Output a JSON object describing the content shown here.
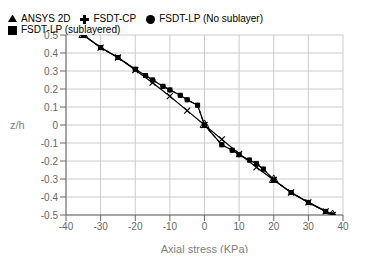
{
  "chart_data": {
    "type": "line",
    "title": "",
    "xlabel": "Axial stress (KPa)",
    "ylabel": "z/h",
    "xlim": [
      -40,
      40
    ],
    "ylim": [
      -0.5,
      0.5
    ],
    "xticks": [
      -40,
      -30,
      -20,
      -10,
      0,
      10,
      20,
      30,
      40
    ],
    "yticks": [
      -0.5,
      -0.4,
      -0.3,
      -0.2,
      -0.1,
      0,
      0.1,
      0.2,
      0.3,
      0.4,
      0.5
    ],
    "grid": true,
    "legend": "upper left",
    "series": [
      {
        "name": "FSDT-CP",
        "color": "black",
        "marker": "x",
        "line_style": "solid",
        "x": [
          -35,
          -30,
          -25,
          -20,
          -15,
          -10,
          -5,
          0,
          5,
          10,
          15,
          20,
          25,
          30,
          35,
          37
        ],
        "values": [
          0.5,
          0.43,
          0.375,
          0.305,
          0.235,
          0.16,
          0.08,
          0.0,
          -0.08,
          -0.16,
          -0.235,
          -0.305,
          -0.375,
          -0.43,
          -0.48,
          -0.5
        ]
      },
      {
        "name": "FSDT-LP (No sublayer)",
        "color": "black",
        "marker": "circle",
        "line_style": "dashed",
        "x": [
          -35,
          -30,
          -25,
          -20,
          -17,
          -15,
          -12,
          -10,
          -7,
          -5,
          -2,
          0,
          5,
          8,
          10,
          13,
          15,
          17,
          20,
          25,
          30,
          35,
          37
        ],
        "values": [
          0.5,
          0.43,
          0.375,
          0.31,
          0.275,
          0.25,
          0.215,
          0.195,
          0.165,
          0.14,
          0.11,
          0.0,
          -0.11,
          -0.14,
          -0.165,
          -0.195,
          -0.215,
          -0.245,
          -0.305,
          -0.375,
          -0.43,
          -0.48,
          -0.5
        ]
      },
      {
        "name": "FSDT-LP (sublayered)",
        "color": "black",
        "marker": "square",
        "line_style": "solid",
        "x": [
          -35,
          -30,
          -25,
          -20,
          -17,
          -15,
          -12,
          -10,
          -7,
          -5,
          -2,
          0,
          5,
          8,
          10,
          13,
          15,
          17,
          20,
          25,
          30,
          35,
          37
        ],
        "values": [
          0.5,
          0.43,
          0.375,
          0.31,
          0.275,
          0.25,
          0.215,
          0.195,
          0.165,
          0.14,
          0.11,
          0.0,
          -0.11,
          -0.14,
          -0.165,
          -0.195,
          -0.215,
          -0.245,
          -0.305,
          -0.375,
          -0.43,
          -0.48,
          -0.5
        ]
      },
      {
        "name": "ANSYS 2D",
        "color": "black",
        "marker": "triangle",
        "line_style": "none",
        "x": [
          -35,
          0,
          20,
          37
        ],
        "values": [
          0.5,
          0.0,
          -0.305,
          -0.5
        ]
      }
    ]
  }
}
